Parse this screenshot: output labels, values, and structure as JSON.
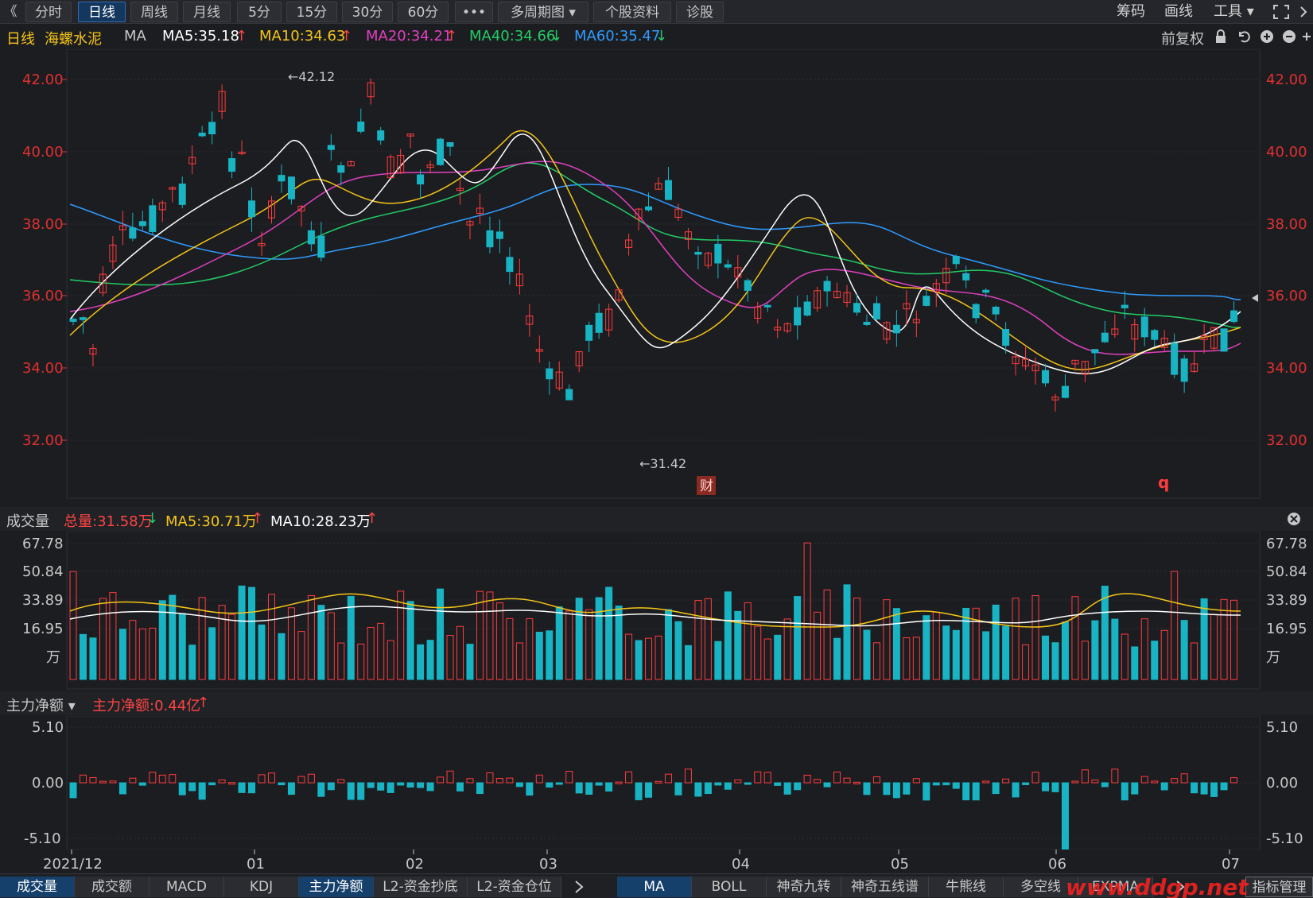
{
  "toolbar": {
    "back": "《",
    "periods": [
      "分时",
      "日线",
      "周线",
      "月线",
      "5分",
      "15分",
      "30分",
      "60分",
      "•••",
      "多周期图 ▾",
      "个股资料",
      "诊股"
    ],
    "active_index": 1,
    "right": [
      "筹码",
      "画线",
      "工具 ▾"
    ]
  },
  "ma_header": {
    "period": "日线",
    "stock_name": "海螺水泥",
    "indicator": "MA",
    "items": [
      {
        "label": "MA5:35.18",
        "trend": "↑",
        "color": "#ffffff",
        "trend_color": "#ff4444"
      },
      {
        "label": "MA10:34.63",
        "trend": "↑",
        "color": "#f5c518",
        "trend_color": "#ff4444"
      },
      {
        "label": "MA20:34.21",
        "trend": "↑",
        "color": "#e040c0",
        "trend_color": "#ff4444"
      },
      {
        "label": "MA40:34.66",
        "trend": "↓",
        "color": "#22cc66",
        "trend_color": "#22cc66"
      },
      {
        "label": "MA60:35.47",
        "trend": "↓",
        "color": "#2f9bff",
        "trend_color": "#22cc66"
      }
    ],
    "fq": "前复权"
  },
  "price_axis": [
    "42.00",
    "40.00",
    "38.00",
    "36.00",
    "34.00",
    "32.00"
  ],
  "annotations": {
    "high": "←42.12",
    "low": "←31.42",
    "cai": "财",
    "q": "q"
  },
  "volume_header": {
    "title": "成交量",
    "total": "总量:31.58万",
    "total_trend": "↓",
    "ma5": "MA5:30.71万",
    "ma5_trend": "↑",
    "ma10": "MA10:28.23万",
    "ma10_trend": "↑"
  },
  "volume_axis": [
    "67.78",
    "50.84",
    "33.89",
    "16.95",
    "万"
  ],
  "fund_header": {
    "title": "主力净额 ▾",
    "value": "主力净额:0.44亿",
    "trend": "↑"
  },
  "fund_axis": [
    "5.10",
    "0.00",
    "-5.10"
  ],
  "date_axis": [
    "2021/12",
    "01",
    "02",
    "03",
    "04",
    "05",
    "06",
    "07"
  ],
  "bottom_tabs_left": [
    "成交量",
    "成交额",
    "MACD",
    "KDJ",
    "主力净额",
    "L2-资金抄底",
    "L2-资金仓位"
  ],
  "bottom_tabs_left_active": 4,
  "bottom_tabs_right": [
    "MA",
    "BOLL",
    "神奇九转",
    "神奇五线谱",
    "牛熊线",
    "多空线",
    "EXPMA"
  ],
  "bottom_tabs_right_active": 0,
  "bottom_right_button": "指标管理",
  "watermark": "www.ddgp.net",
  "colors": {
    "up": "#ff3c3c",
    "down": "#18b4c4",
    "bg": "#1c1d21",
    "grid": "#2e3036",
    "axis_text": "#e03030"
  }
}
